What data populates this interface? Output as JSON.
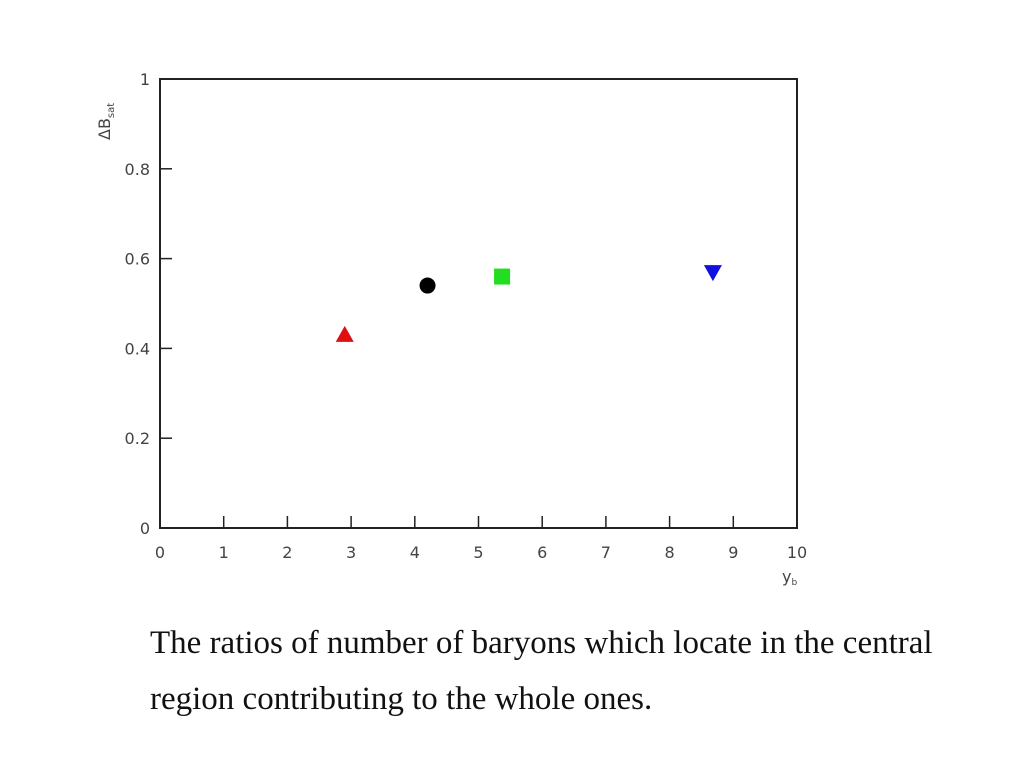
{
  "chart_data": {
    "type": "scatter",
    "x_label": "y",
    "x_label_sub": "b",
    "y_label": "ΔB",
    "y_label_sub": "sat",
    "xlim": [
      0,
      10
    ],
    "xticks": [
      0,
      1,
      2,
      3,
      4,
      5,
      6,
      7,
      8,
      9,
      10
    ],
    "ylim": [
      0,
      1
    ],
    "yticks": [
      0,
      0.2,
      0.4,
      0.6,
      0.8,
      1
    ],
    "series": [
      {
        "color": "#e01010",
        "marker": "triangle-up",
        "x": [
          2.9
        ],
        "values": [
          0.43
        ]
      },
      {
        "color": "#000000",
        "marker": "circle",
        "x": [
          4.2
        ],
        "values": [
          0.54
        ]
      },
      {
        "color": "#22dd22",
        "marker": "square",
        "x": [
          5.37
        ],
        "values": [
          0.56
        ]
      },
      {
        "color": "#1010e0",
        "marker": "triangle-down",
        "x": [
          8.68
        ],
        "values": [
          0.57
        ]
      }
    ]
  },
  "caption": "The ratios of number of baryons which locate in the central region contributing to the whole ones."
}
